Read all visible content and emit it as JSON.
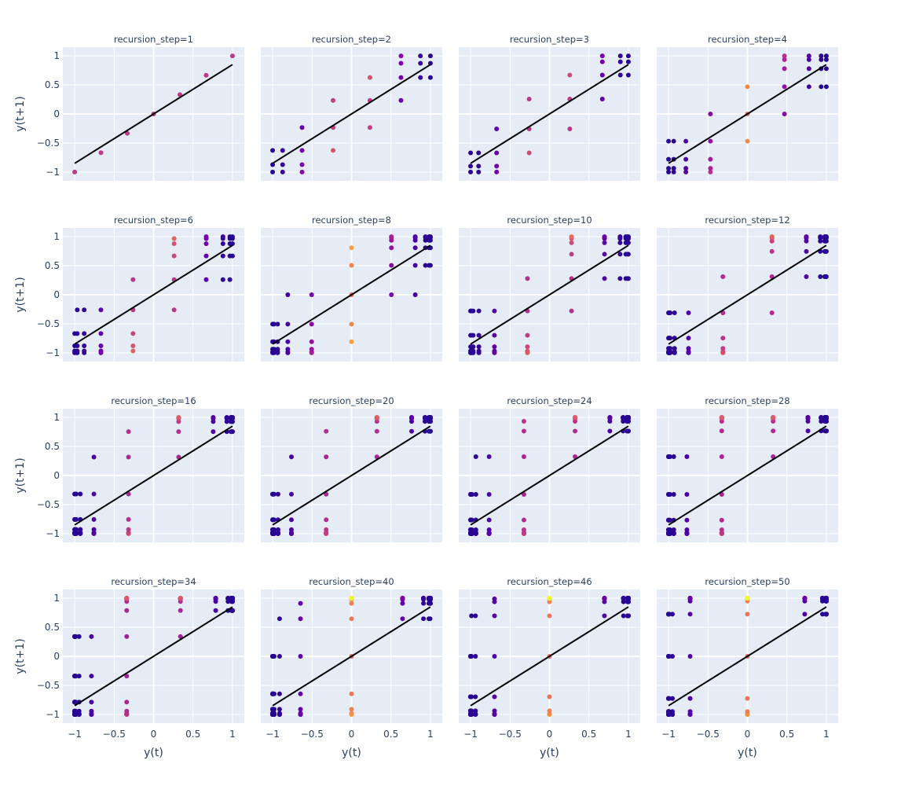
{
  "chart_data": {
    "type": "scatter",
    "layout": "facet-grid",
    "rows": 4,
    "cols": 4,
    "xlabel": "y(t)",
    "ylabel": "y(t+1)",
    "xlim": [
      -1.15,
      1.15
    ],
    "ylim": [
      -1.15,
      1.15
    ],
    "xticks": [
      -1,
      -0.5,
      0,
      0.5,
      1
    ],
    "xtick_labels": [
      "−1",
      "−0.5",
      "0",
      "0.5",
      "1"
    ],
    "yticks": [
      -1,
      -0.5,
      0,
      0.5,
      1
    ],
    "ytick_labels": [
      "−1",
      "−0.5",
      "0",
      "0.5",
      "1"
    ],
    "colorscale": "plasma",
    "colorscale_stops": [
      "#0d0887",
      "#46039f",
      "#7201a8",
      "#9c179e",
      "#bd3786",
      "#d8576b",
      "#ed7953",
      "#fb9f3a",
      "#fdca26",
      "#f0f921"
    ],
    "reference_line": {
      "color": "#000000",
      "x": [
        -1,
        1
      ],
      "y": [
        -0.85,
        0.85
      ]
    },
    "grid": true,
    "panels": [
      {
        "title": "recursion_step=1",
        "step": 1
      },
      {
        "title": "recursion_step=2",
        "step": 2
      },
      {
        "title": "recursion_step=3",
        "step": 3
      },
      {
        "title": "recursion_step=4",
        "step": 4
      },
      {
        "title": "recursion_step=6",
        "step": 6
      },
      {
        "title": "recursion_step=8",
        "step": 8
      },
      {
        "title": "recursion_step=10",
        "step": 10
      },
      {
        "title": "recursion_step=12",
        "step": 12
      },
      {
        "title": "recursion_step=16",
        "step": 16
      },
      {
        "title": "recursion_step=20",
        "step": 20
      },
      {
        "title": "recursion_step=24",
        "step": 24
      },
      {
        "title": "recursion_step=28",
        "step": 28
      },
      {
        "title": "recursion_step=34",
        "step": 34
      },
      {
        "title": "recursion_step=40",
        "step": 40
      },
      {
        "title": "recursion_step=46",
        "step": 46
      },
      {
        "title": "recursion_step=50",
        "step": 50
      }
    ]
  }
}
